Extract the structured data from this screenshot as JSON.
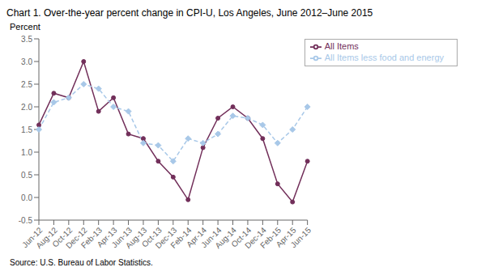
{
  "chart_data": {
    "type": "line",
    "title": "Chart 1. Over-the-year percent change in CPI-U,  Los Angeles, June 2012–June 2015",
    "ylabel": "Percent",
    "annotations": [
      "Source: U.S. Bureau of Labor Statistics."
    ],
    "categories": [
      "Jun-12",
      "Aug-12",
      "Oct-12",
      "Dec-12",
      "Feb-13",
      "Apr-13",
      "Jun-13",
      "Aug-13",
      "Oct-13",
      "Dec-13",
      "Feb-14",
      "Apr-14",
      "Jun-14",
      "Aug-14",
      "Oct-14",
      "Dec-14",
      "Feb-15",
      "Apr-15",
      "Jun-15"
    ],
    "series": [
      {
        "name": "All Items",
        "color": "#722F5A",
        "marker": "circle",
        "line_style": "solid",
        "values": [
          1.6,
          2.3,
          2.2,
          3.0,
          1.9,
          2.2,
          1.4,
          1.3,
          0.8,
          0.45,
          -0.05,
          1.1,
          1.75,
          2.0,
          1.75,
          1.3,
          0.3,
          -0.1,
          0.8
        ]
      },
      {
        "name": "All Items less food and energy",
        "color": "#A8C8E8",
        "marker": "diamond",
        "line_style": "dashed",
        "values": [
          1.5,
          2.1,
          2.2,
          2.5,
          2.4,
          2.0,
          1.9,
          1.2,
          1.15,
          0.8,
          1.3,
          1.2,
          1.4,
          1.8,
          1.75,
          1.6,
          1.2,
          1.5,
          2.0
        ]
      }
    ],
    "ylim": [
      -0.5,
      3.5
    ],
    "yticks": [
      -0.5,
      {
        "value": 0,
        "label": "0.0"
      },
      0.5,
      {
        "value": 1,
        "label": "1.0"
      },
      1.5,
      {
        "value": 2,
        "label": "2.0"
      },
      2.5,
      {
        "value": 3,
        "label": "3.0"
      },
      3.5
    ],
    "legend": "upper right",
    "grid": false
  }
}
